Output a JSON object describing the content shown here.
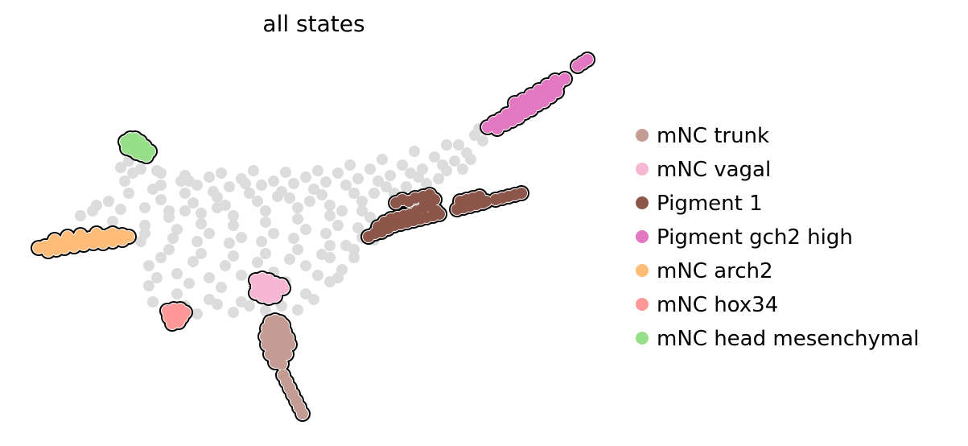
{
  "chart_data": {
    "type": "scatter",
    "title": "all states",
    "xlabel": "",
    "ylabel": "",
    "axes_visible": false,
    "grid": false,
    "legend_position": "right",
    "background_color": "#dcdcdc",
    "background_points": [
      [
        150,
        208
      ],
      [
        175,
        210
      ],
      [
        200,
        215
      ],
      [
        230,
        218
      ],
      [
        260,
        220
      ],
      [
        300,
        222
      ],
      [
        340,
        225
      ],
      [
        380,
        220
      ],
      [
        420,
        215
      ],
      [
        460,
        210
      ],
      [
        500,
        205
      ],
      [
        540,
        195
      ],
      [
        570,
        180
      ],
      [
        590,
        168
      ],
      [
        155,
        225
      ],
      [
        190,
        235
      ],
      [
        230,
        240
      ],
      [
        270,
        245
      ],
      [
        310,
        240
      ],
      [
        350,
        238
      ],
      [
        390,
        235
      ],
      [
        430,
        230
      ],
      [
        470,
        225
      ],
      [
        510,
        215
      ],
      [
        550,
        205
      ],
      [
        580,
        190
      ],
      [
        120,
        255
      ],
      [
        150,
        260
      ],
      [
        180,
        258
      ],
      [
        210,
        262
      ],
      [
        250,
        265
      ],
      [
        290,
        268
      ],
      [
        330,
        262
      ],
      [
        370,
        258
      ],
      [
        410,
        255
      ],
      [
        450,
        250
      ],
      [
        490,
        240
      ],
      [
        530,
        228
      ],
      [
        100,
        268
      ],
      [
        140,
        275
      ],
      [
        180,
        280
      ],
      [
        220,
        285
      ],
      [
        260,
        290
      ],
      [
        300,
        295
      ],
      [
        340,
        290
      ],
      [
        380,
        285
      ],
      [
        420,
        280
      ],
      [
        460,
        270
      ],
      [
        500,
        255
      ],
      [
        175,
        300
      ],
      [
        210,
        310
      ],
      [
        250,
        315
      ],
      [
        290,
        318
      ],
      [
        330,
        315
      ],
      [
        370,
        310
      ],
      [
        410,
        305
      ],
      [
        450,
        295
      ],
      [
        480,
        285
      ],
      [
        185,
        330
      ],
      [
        220,
        340
      ],
      [
        260,
        345
      ],
      [
        300,
        342
      ],
      [
        340,
        338
      ],
      [
        380,
        330
      ],
      [
        410,
        320
      ],
      [
        440,
        310
      ],
      [
        185,
        355
      ],
      [
        220,
        365
      ],
      [
        260,
        372
      ],
      [
        300,
        375
      ],
      [
        340,
        372
      ],
      [
        380,
        365
      ],
      [
        410,
        350
      ],
      [
        190,
        375
      ],
      [
        230,
        380
      ],
      [
        270,
        378
      ],
      [
        310,
        380
      ],
      [
        350,
        380
      ],
      [
        390,
        372
      ],
      [
        160,
        200
      ],
      [
        165,
        215
      ],
      [
        200,
        230
      ],
      [
        245,
        230
      ],
      [
        285,
        232
      ],
      [
        325,
        230
      ],
      [
        365,
        228
      ],
      [
        405,
        226
      ],
      [
        445,
        222
      ],
      [
        485,
        218
      ],
      [
        525,
        210
      ],
      [
        565,
        200
      ],
      [
        600,
        175
      ],
      [
        115,
        262
      ],
      [
        135,
        250
      ],
      [
        245,
        300
      ],
      [
        285,
        302
      ],
      [
        325,
        300
      ],
      [
        365,
        296
      ],
      [
        405,
        290
      ],
      [
        445,
        283
      ],
      [
        200,
        320
      ],
      [
        240,
        325
      ],
      [
        280,
        330
      ],
      [
        320,
        326
      ],
      [
        360,
        322
      ],
      [
        400,
        316
      ],
      [
        430,
        305
      ],
      [
        465,
        298
      ],
      [
        195,
        345
      ],
      [
        235,
        352
      ],
      [
        275,
        357
      ],
      [
        315,
        355
      ],
      [
        355,
        350
      ],
      [
        395,
        342
      ],
      [
        425,
        335
      ],
      [
        205,
        388
      ],
      [
        245,
        390
      ],
      [
        290,
        388
      ],
      [
        330,
        386
      ],
      [
        370,
        385
      ],
      [
        160,
        240
      ],
      [
        200,
        248
      ],
      [
        240,
        252
      ],
      [
        280,
        255
      ],
      [
        320,
        250
      ],
      [
        360,
        246
      ],
      [
        400,
        242
      ],
      [
        440,
        240
      ],
      [
        480,
        232
      ],
      [
        520,
        220
      ],
      [
        555,
        212
      ],
      [
        585,
        198
      ],
      [
        210,
        270
      ],
      [
        250,
        278
      ],
      [
        290,
        280
      ],
      [
        330,
        276
      ],
      [
        370,
        272
      ],
      [
        410,
        268
      ],
      [
        450,
        262
      ],
      [
        490,
        250
      ],
      [
        180,
        290
      ],
      [
        215,
        296
      ],
      [
        230,
        262
      ],
      [
        270,
        258
      ],
      [
        195,
        212
      ],
      [
        235,
        225
      ],
      [
        275,
        215
      ],
      [
        315,
        212
      ],
      [
        355,
        214
      ],
      [
        395,
        212
      ],
      [
        435,
        205
      ],
      [
        475,
        198
      ],
      [
        515,
        188
      ],
      [
        555,
        180
      ],
      [
        595,
        160
      ],
      [
        470,
        280
      ],
      [
        495,
        270
      ],
      [
        515,
        262
      ],
      [
        440,
        320
      ],
      [
        420,
        345
      ],
      [
        225,
        225
      ],
      [
        265,
        238
      ],
      [
        305,
        228
      ],
      [
        345,
        244
      ],
      [
        385,
        250
      ],
      [
        425,
        262
      ],
      [
        465,
        240
      ],
      [
        505,
        232
      ],
      [
        545,
        222
      ],
      [
        575,
        210
      ]
    ],
    "series": [
      {
        "name": "mNC trunk",
        "color": "#c49c94",
        "points": [
          [
            336,
            400
          ],
          [
            342,
            398
          ],
          [
            348,
            400
          ],
          [
            352,
            404
          ],
          [
            332,
            408
          ],
          [
            338,
            410
          ],
          [
            346,
            412
          ],
          [
            354,
            412
          ],
          [
            330,
            418
          ],
          [
            336,
            420
          ],
          [
            344,
            422
          ],
          [
            352,
            422
          ],
          [
            358,
            420
          ],
          [
            332,
            428
          ],
          [
            338,
            432
          ],
          [
            346,
            432
          ],
          [
            354,
            430
          ],
          [
            360,
            428
          ],
          [
            336,
            440
          ],
          [
            342,
            444
          ],
          [
            350,
            442
          ],
          [
            356,
            440
          ],
          [
            342,
            450
          ],
          [
            350,
            452
          ],
          [
            352,
            466
          ],
          [
            356,
            474
          ],
          [
            360,
            482
          ],
          [
            364,
            490
          ],
          [
            368,
            498
          ],
          [
            372,
            506
          ],
          [
            376,
            514
          ]
        ]
      },
      {
        "name": "mNC vagal",
        "color": "#f7b6d2",
        "points": [
          [
            318,
            348
          ],
          [
            326,
            346
          ],
          [
            334,
            348
          ],
          [
            342,
            352
          ],
          [
            350,
            354
          ],
          [
            320,
            356
          ],
          [
            328,
            358
          ],
          [
            336,
            360
          ],
          [
            344,
            362
          ],
          [
            352,
            358
          ],
          [
            318,
            364
          ],
          [
            326,
            368
          ],
          [
            334,
            370
          ],
          [
            342,
            368
          ]
        ]
      },
      {
        "name": "Pigment 1",
        "color": "#8c564b",
        "points": [
          [
            458,
            294
          ],
          [
            466,
            290
          ],
          [
            474,
            288
          ],
          [
            482,
            284
          ],
          [
            490,
            280
          ],
          [
            498,
            278
          ],
          [
            506,
            276
          ],
          [
            514,
            274
          ],
          [
            522,
            272
          ],
          [
            530,
            270
          ],
          [
            538,
            268
          ],
          [
            546,
            266
          ],
          [
            470,
            282
          ],
          [
            478,
            276
          ],
          [
            486,
            272
          ],
          [
            494,
            270
          ],
          [
            502,
            268
          ],
          [
            510,
            266
          ],
          [
            518,
            262
          ],
          [
            526,
            258
          ],
          [
            534,
            256
          ],
          [
            542,
            262
          ],
          [
            492,
            252
          ],
          [
            500,
            248
          ],
          [
            508,
            250
          ],
          [
            516,
            246
          ],
          [
            526,
            244
          ],
          [
            534,
            242
          ],
          [
            540,
            248
          ],
          [
            528,
            252
          ],
          [
            568,
            260
          ],
          [
            576,
            258
          ],
          [
            584,
            256
          ],
          [
            592,
            254
          ],
          [
            600,
            252
          ],
          [
            572,
            250
          ],
          [
            580,
            248
          ],
          [
            588,
            246
          ],
          [
            596,
            244
          ],
          [
            604,
            250
          ],
          [
            616,
            248
          ],
          [
            624,
            246
          ],
          [
            632,
            244
          ],
          [
            640,
            242
          ],
          [
            648,
            240
          ]
        ]
      },
      {
        "name": "Pigment gch2 high",
        "color": "#e377c2",
        "points": [
          [
            606,
            158
          ],
          [
            614,
            152
          ],
          [
            622,
            148
          ],
          [
            630,
            142
          ],
          [
            638,
            138
          ],
          [
            646,
            134
          ],
          [
            654,
            128
          ],
          [
            662,
            124
          ],
          [
            670,
            118
          ],
          [
            678,
            114
          ],
          [
            686,
            108
          ],
          [
            694,
            104
          ],
          [
            702,
            98
          ],
          [
            618,
            160
          ],
          [
            628,
            154
          ],
          [
            636,
            150
          ],
          [
            644,
            146
          ],
          [
            652,
            140
          ],
          [
            660,
            136
          ],
          [
            668,
            130
          ],
          [
            676,
            126
          ],
          [
            684,
            120
          ],
          [
            692,
            114
          ],
          [
            640,
            128
          ],
          [
            650,
            124
          ],
          [
            660,
            118
          ],
          [
            670,
            112
          ],
          [
            680,
            106
          ],
          [
            690,
            100
          ],
          [
            718,
            82
          ],
          [
            724,
            78
          ],
          [
            730,
            74
          ]
        ]
      },
      {
        "name": "mNC arch2",
        "color": "#ffbb78",
        "points": [
          [
            48,
            308
          ],
          [
            56,
            306
          ],
          [
            64,
            304
          ],
          [
            72,
            302
          ],
          [
            80,
            300
          ],
          [
            88,
            298
          ],
          [
            96,
            298
          ],
          [
            104,
            296
          ],
          [
            112,
            296
          ],
          [
            120,
            294
          ],
          [
            128,
            294
          ],
          [
            136,
            292
          ],
          [
            144,
            292
          ],
          [
            152,
            292
          ],
          [
            160,
            294
          ],
          [
            60,
            312
          ],
          [
            70,
            310
          ],
          [
            80,
            308
          ],
          [
            92,
            306
          ],
          [
            104,
            304
          ],
          [
            116,
            302
          ],
          [
            128,
            302
          ],
          [
            140,
            300
          ],
          [
            152,
            298
          ],
          [
            68,
            298
          ],
          [
            84,
            294
          ],
          [
            100,
            292
          ],
          [
            120,
            290
          ],
          [
            140,
            290
          ]
        ]
      },
      {
        "name": "mNC hox34",
        "color": "#ff9896",
        "points": [
          [
            208,
            386
          ],
          [
            216,
            384
          ],
          [
            224,
            384
          ],
          [
            230,
            388
          ],
          [
            210,
            394
          ],
          [
            218,
            396
          ],
          [
            226,
            394
          ],
          [
            214,
            402
          ],
          [
            222,
            400
          ],
          [
            210,
            392
          ]
        ]
      },
      {
        "name": "mNC head mesenchymal",
        "color": "#98df8a",
        "points": [
          [
            156,
            176
          ],
          [
            162,
            172
          ],
          [
            168,
            172
          ],
          [
            174,
            176
          ],
          [
            180,
            182
          ],
          [
            186,
            188
          ],
          [
            158,
            184
          ],
          [
            164,
            186
          ],
          [
            170,
            190
          ],
          [
            176,
            192
          ],
          [
            182,
            194
          ],
          [
            166,
            180
          ],
          [
            174,
            184
          ]
        ]
      }
    ]
  }
}
